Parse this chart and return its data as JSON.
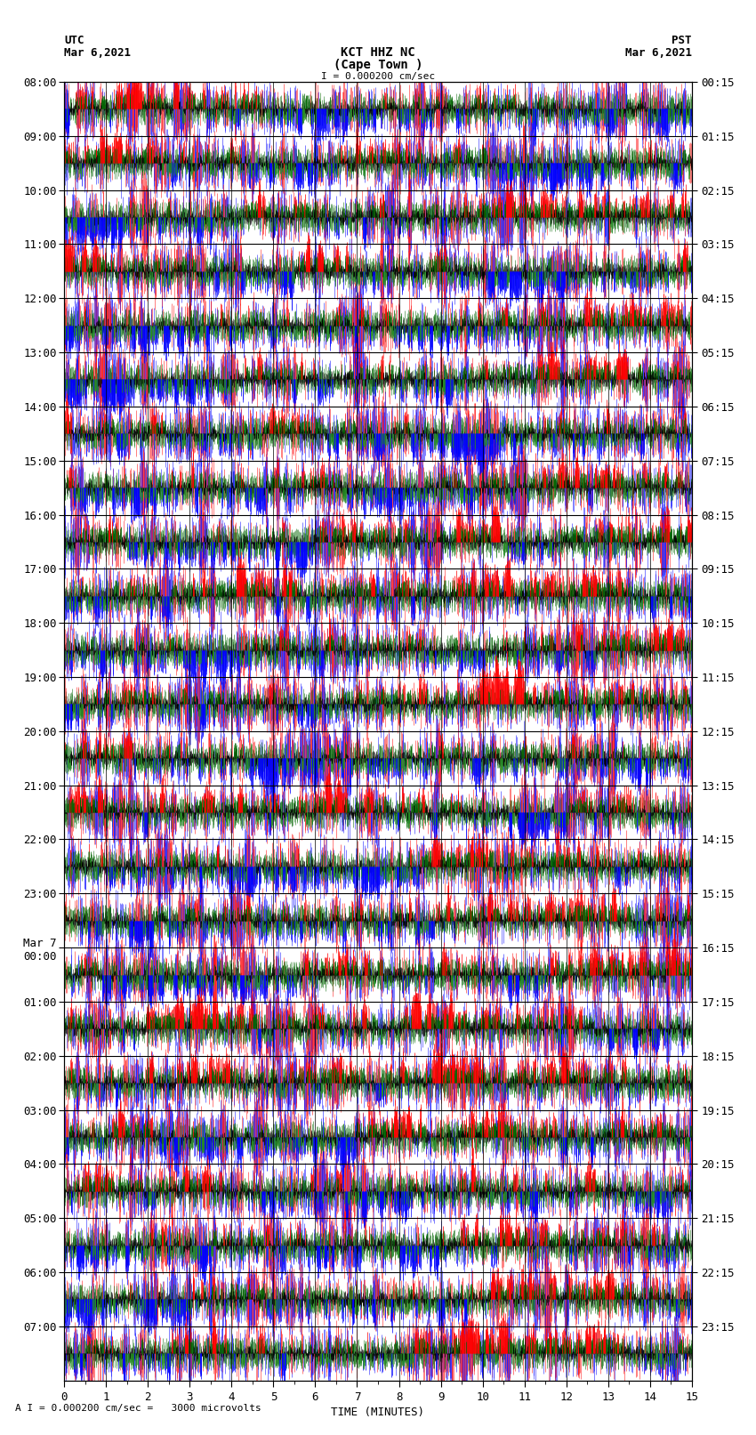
{
  "title_line1": "KCT HHZ NC",
  "title_line2": "(Cape Town )",
  "scale_label": "I = 0.000200 cm/sec",
  "left_timezone": "UTC",
  "left_date": "Mar 6,2021",
  "right_timezone": "PST",
  "right_date": "Mar 6,2021",
  "left_times": [
    "08:00",
    "09:00",
    "10:00",
    "11:00",
    "12:00",
    "13:00",
    "14:00",
    "15:00",
    "16:00",
    "17:00",
    "18:00",
    "19:00",
    "20:00",
    "21:00",
    "22:00",
    "23:00",
    "Mar 7\n00:00",
    "01:00",
    "02:00",
    "03:00",
    "04:00",
    "05:00",
    "06:00",
    "07:00"
  ],
  "right_times": [
    "00:15",
    "01:15",
    "02:15",
    "03:15",
    "04:15",
    "05:15",
    "06:15",
    "07:15",
    "08:15",
    "09:15",
    "10:15",
    "11:15",
    "12:15",
    "13:15",
    "14:15",
    "15:15",
    "16:15",
    "17:15",
    "18:15",
    "19:15",
    "20:15",
    "21:15",
    "22:15",
    "23:15"
  ],
  "xlabel": "TIME (MINUTES)",
  "footer": "A I = 0.000200 cm/sec =   3000 microvolts",
  "xlim": [
    0,
    15
  ],
  "xticks": [
    0,
    1,
    2,
    3,
    4,
    5,
    6,
    7,
    8,
    9,
    10,
    11,
    12,
    13,
    14,
    15
  ],
  "num_traces": 24,
  "bg_color": "#ffffff",
  "font_size": 9,
  "title_font_size": 10,
  "dpi": 100
}
